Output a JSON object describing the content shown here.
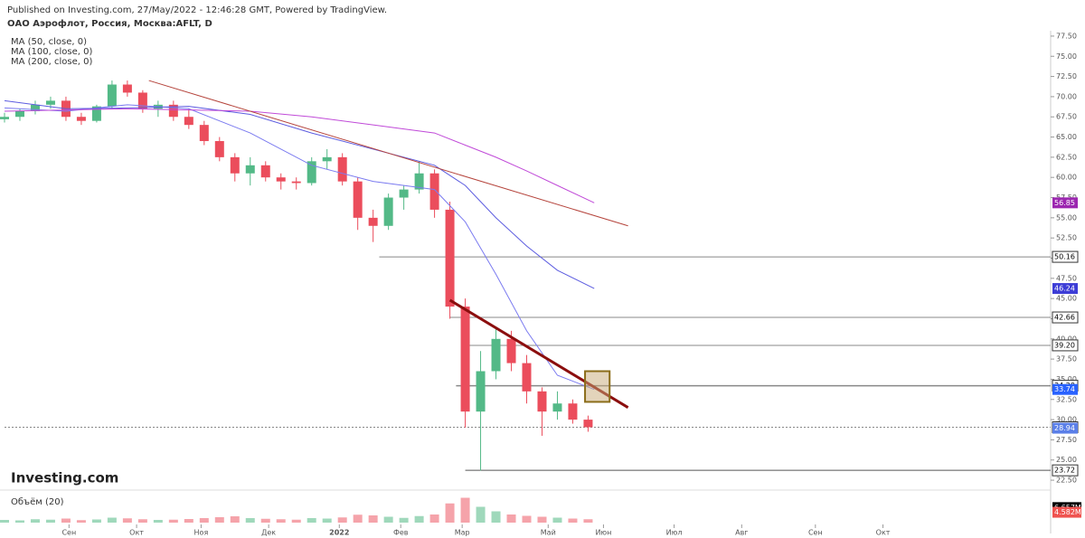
{
  "published": "Published on Investing.com, 27/May/2022 - 12:46:28 GMT, Powered by TradingView.",
  "brand": "Investing.com",
  "chart_data": {
    "type": "candlestick",
    "title": "ОАО Аэрофлот, Россия, Москва:AFLT, D",
    "xlim": [
      0,
      340
    ],
    "ylim": [
      21.5,
      78.5
    ],
    "xticks": [
      {
        "value": 21,
        "label": "Сен"
      },
      {
        "value": 43,
        "label": "Окт"
      },
      {
        "value": 64,
        "label": "Ноя"
      },
      {
        "value": 86,
        "label": "Дек"
      },
      {
        "value": 109,
        "label": "2022"
      },
      {
        "value": 129,
        "label": "Фев"
      },
      {
        "value": 149,
        "label": "Мар"
      },
      {
        "value": 177,
        "label": "Май"
      },
      {
        "value": 195,
        "label": "Июн"
      },
      {
        "value": 218,
        "label": "Июл"
      },
      {
        "value": 240,
        "label": "Авг"
      },
      {
        "value": 264,
        "label": "Сен"
      },
      {
        "value": 286,
        "label": "Окт"
      }
    ],
    "yticks": [
      {
        "value": 22.5,
        "label": "22.50"
      },
      {
        "value": 25,
        "label": "25.00"
      },
      {
        "value": 27.5,
        "label": "27.50"
      },
      {
        "value": 30,
        "label": "30.00"
      },
      {
        "value": 32.5,
        "label": "32.50"
      },
      {
        "value": 35,
        "label": "35.00"
      },
      {
        "value": 37.5,
        "label": "37.50"
      },
      {
        "value": 40,
        "label": "40.00"
      },
      {
        "value": 42.5,
        "label": "42.50"
      },
      {
        "value": 45,
        "label": "45.00"
      },
      {
        "value": 47.5,
        "label": "47.50"
      },
      {
        "value": 50,
        "label": "50.00"
      },
      {
        "value": 52.5,
        "label": "52.50"
      },
      {
        "value": 55,
        "label": "55.00"
      },
      {
        "value": 57.5,
        "label": "57.50"
      },
      {
        "value": 60,
        "label": "60.00"
      },
      {
        "value": 62.5,
        "label": "62.50"
      },
      {
        "value": 65,
        "label": "65.00"
      },
      {
        "value": 67.5,
        "label": "67.50"
      },
      {
        "value": 70,
        "label": "70.00"
      },
      {
        "value": 72.5,
        "label": "72.50"
      },
      {
        "value": 75,
        "label": "75.00"
      },
      {
        "value": 77.5,
        "label": "77.50"
      }
    ],
    "candles": {
      "x": [
        0,
        5,
        10,
        15,
        20,
        25,
        30,
        35,
        40,
        45,
        50,
        55,
        60,
        65,
        70,
        75,
        80,
        85,
        90,
        95,
        100,
        105,
        110,
        115,
        120,
        125,
        130,
        135,
        140,
        145,
        150,
        155,
        160,
        165,
        170,
        175,
        180,
        185,
        190
      ],
      "open": [
        67.2,
        67.5,
        68.2,
        69,
        69.5,
        67.5,
        67,
        68.8,
        71.5,
        70.5,
        68.5,
        69,
        67.5,
        66.5,
        64.5,
        62.5,
        60.5,
        61.5,
        60,
        59.5,
        59.3,
        62,
        62.5,
        59.5,
        55,
        54,
        57.5,
        58.5,
        60.5,
        56,
        44,
        31,
        36,
        40,
        37,
        33.5,
        31,
        32,
        30
      ],
      "high": [
        68,
        68.5,
        69.5,
        70,
        70,
        68,
        69,
        72,
        72,
        70.8,
        69.5,
        69.5,
        68.5,
        67,
        65,
        63,
        62.5,
        62,
        60.5,
        60,
        62.5,
        63.5,
        63,
        60,
        56,
        58,
        59,
        62,
        61,
        57,
        45,
        38.5,
        41.5,
        41,
        38,
        34,
        33.5,
        32.5,
        30.5
      ],
      "low": [
        66.8,
        67,
        67.8,
        68.5,
        67,
        66.5,
        66.8,
        68.5,
        70,
        68,
        67.5,
        67,
        66,
        64,
        62,
        59.5,
        59,
        59.5,
        58.5,
        58.5,
        59,
        61,
        59,
        53.5,
        52,
        53.5,
        56,
        58,
        55,
        42.5,
        29,
        23.7,
        35,
        36,
        32,
        28,
        30,
        29.5,
        28.5
      ],
      "close": [
        67.5,
        68.2,
        69,
        69.5,
        67.5,
        67,
        68.8,
        71.5,
        70.5,
        68.5,
        69,
        67.5,
        66.5,
        64.5,
        62.5,
        60.5,
        61.5,
        60,
        59.5,
        59.3,
        62,
        62.5,
        59.5,
        55,
        54,
        57.5,
        58.5,
        60.5,
        56,
        44,
        31,
        36,
        40,
        37,
        33.5,
        31,
        32,
        30,
        29.06
      ],
      "volume": [
        1.2,
        1,
        1.5,
        1.3,
        1.8,
        1.1,
        1.4,
        2.2,
        1.9,
        1.5,
        1.2,
        1.3,
        1.6,
        2,
        2.4,
        2.8,
        2,
        1.7,
        1.5,
        1.3,
        2,
        1.8,
        2.3,
        3.5,
        3.2,
        2.6,
        2.1,
        2.9,
        3.6,
        8.5,
        11,
        7,
        5,
        3.6,
        3,
        2.6,
        2.2,
        1.8,
        1.5
      ]
    },
    "volume_label": "Объём (20)",
    "vlim": [
      0,
      12
    ],
    "volume_tags": [
      {
        "value": 6.657,
        "label": "6.657M",
        "color": "#000000"
      },
      {
        "value": 4.582,
        "label": "4.582M",
        "color": "#ef5350"
      }
    ],
    "moving_averages": [
      {
        "name": "MA (50, close, 0)",
        "color": "#7b7bf0",
        "x": [
          0,
          20,
          40,
          60,
          80,
          100,
          120,
          140,
          150,
          160,
          170,
          180,
          192
        ],
        "values": [
          68.6,
          68.2,
          69,
          68.5,
          65.5,
          61.5,
          59.5,
          58.5,
          54.5,
          48,
          41,
          35.5,
          33.74
        ]
      },
      {
        "name": "MA (100, close, 0)",
        "color": "#5c5ce0",
        "x": [
          0,
          20,
          40,
          60,
          80,
          100,
          120,
          140,
          150,
          160,
          170,
          180,
          192
        ],
        "values": [
          69.5,
          68.5,
          68.6,
          68.8,
          67.8,
          65.5,
          63.5,
          61.5,
          59,
          55,
          51.5,
          48.5,
          46.24
        ]
      },
      {
        "name": "MA (200, close, 0)",
        "color": "#c04ad8",
        "x": [
          0,
          40,
          80,
          100,
          120,
          140,
          150,
          160,
          170,
          180,
          192
        ],
        "values": [
          68.2,
          68.5,
          68.2,
          67.5,
          66.5,
          65.5,
          64,
          62.5,
          60.8,
          59,
          56.85
        ]
      }
    ],
    "levels": [
      {
        "value": 50.16,
        "from": 122
      },
      {
        "value": 42.66,
        "from": 145
      },
      {
        "value": 39.2,
        "from": 150
      },
      {
        "value": 34.2,
        "from": 147
      },
      {
        "value": 29.06,
        "from": 0
      },
      {
        "value": 23.72,
        "from": 150
      }
    ],
    "trendlines": [
      {
        "x": [
          47,
          203
        ],
        "values": [
          72,
          54
        ],
        "color": "#b5443c"
      },
      {
        "x": [
          145,
          203
        ],
        "values": [
          44.8,
          31.5
        ],
        "color": "#8b0e0e"
      }
    ],
    "box": {
      "x": [
        189,
        197
      ],
      "values": [
        36,
        32.2
      ]
    },
    "price_tags": [
      {
        "value": 56.85,
        "label": "56.85",
        "color": "#9c27b0"
      },
      {
        "value": 50.16,
        "label": "50.16",
        "color": "#ffffff"
      },
      {
        "value": 46.24,
        "label": "46.24",
        "color": "#3d3dd6"
      },
      {
        "value": 42.66,
        "label": "42.66",
        "color": "#ffffff"
      },
      {
        "value": 39.2,
        "label": "39.20",
        "color": "#ffffff"
      },
      {
        "value": 34.2,
        "label": "34.20",
        "color": "#ffffff"
      },
      {
        "value": 33.74,
        "label": "33.74",
        "color": "#2962ff"
      },
      {
        "value": 29.06,
        "label": "29.06",
        "color": "#ffffff"
      },
      {
        "value": 28.94,
        "label": "28.94",
        "color": "#5b7fe8"
      },
      {
        "value": 23.72,
        "label": "23.72",
        "color": "#ffffff"
      }
    ]
  }
}
